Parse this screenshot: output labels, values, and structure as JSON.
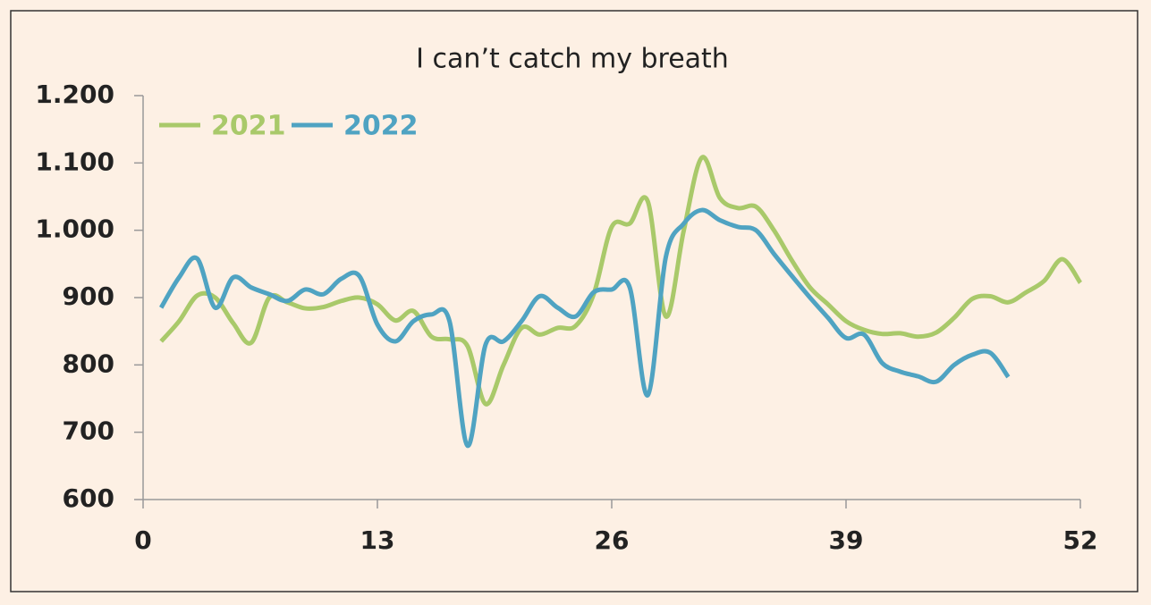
{
  "chart_data": {
    "type": "line",
    "title": "I can’t catch my breath",
    "x": [
      1,
      2,
      3,
      4,
      5,
      6,
      7,
      8,
      9,
      10,
      11,
      12,
      13,
      14,
      15,
      16,
      17,
      18,
      19,
      20,
      21,
      22,
      23,
      24,
      25,
      26,
      27,
      28,
      29,
      30,
      31,
      32,
      33,
      34,
      35,
      36,
      37,
      38,
      39,
      40,
      41,
      42,
      43,
      44,
      45,
      46,
      47,
      48,
      49,
      50,
      51,
      52
    ],
    "series": [
      {
        "name": "2021",
        "color": "#a9c96a",
        "values": [
          835,
          865,
          903,
          900,
          862,
          833,
          900,
          893,
          884,
          886,
          895,
          900,
          890,
          866,
          880,
          842,
          838,
          828,
          742,
          800,
          855,
          845,
          855,
          858,
          905,
          1005,
          1010,
          1043,
          872,
          1000,
          1108,
          1048,
          1033,
          1035,
          1000,
          955,
          915,
          890,
          865,
          852,
          846,
          847,
          842,
          848,
          870,
          898,
          902,
          893,
          908,
          925,
          957,
          922
        ]
      },
      {
        "name": "2022",
        "color": "#4fa3c2",
        "values": [
          885,
          930,
          958,
          885,
          930,
          915,
          905,
          895,
          912,
          905,
          928,
          932,
          860,
          835,
          865,
          875,
          865,
          680,
          830,
          835,
          865,
          902,
          885,
          872,
          908,
          912,
          915,
          755,
          960,
          1010,
          1030,
          1015,
          1005,
          1000,
          965,
          932,
          900,
          870,
          840,
          845,
          803,
          790,
          783,
          775,
          800,
          815,
          818,
          782,
          null,
          null,
          null,
          null
        ]
      }
    ],
    "xlim": [
      0,
      52
    ],
    "xticks": [
      0,
      13,
      26,
      39,
      52
    ],
    "ylim": [
      600,
      1200
    ],
    "yticks": [
      600,
      700,
      800,
      900,
      {
        "value": 1000,
        "label": "1.000"
      },
      {
        "value": 1100,
        "label": "1.100"
      },
      {
        "value": 1200,
        "label": "1.200"
      }
    ],
    "legend": "top-left"
  }
}
